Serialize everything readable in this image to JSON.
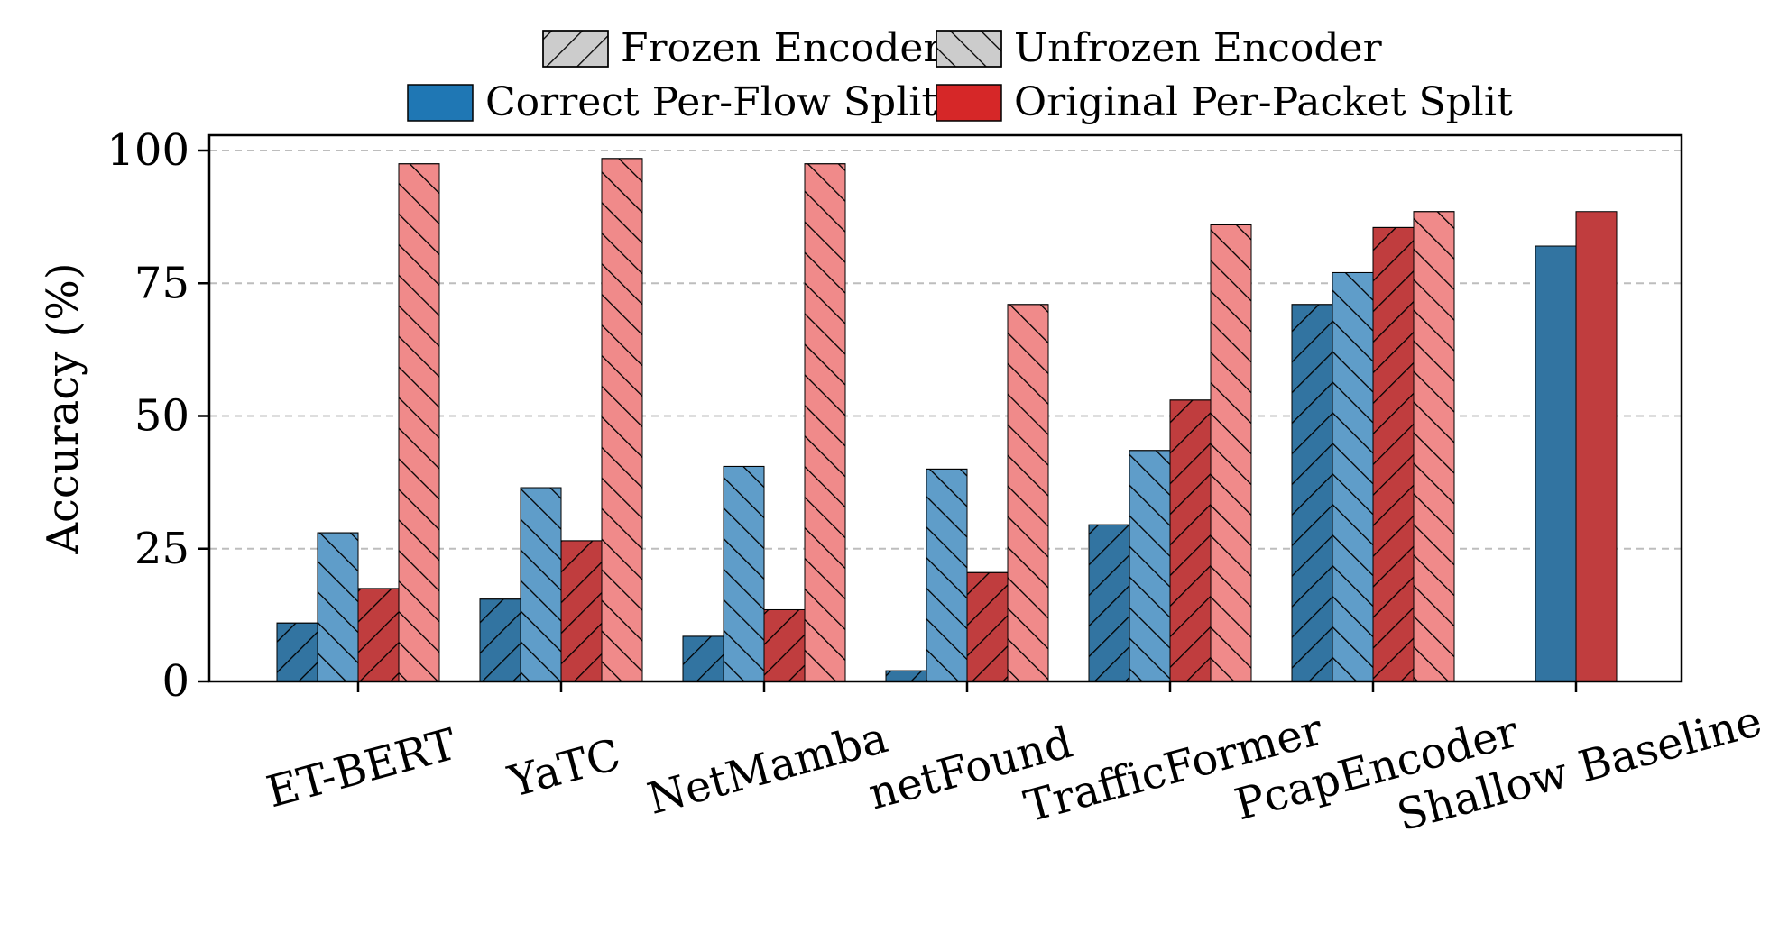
{
  "chart_data": {
    "type": "bar",
    "categories": [
      "ET-BERT",
      "YaTC",
      "NetMamba",
      "netFound",
      "TrafficFormer",
      "PcapEncoder",
      "Shallow Baseline"
    ],
    "series": [
      {
        "name": "Correct Per-Flow Split",
        "encoder": "Frozen Encoder",
        "values": [
          11,
          15.5,
          8.5,
          2,
          29.5,
          71,
          82
        ]
      },
      {
        "name": "Correct Per-Flow Split",
        "encoder": "Unfrozen Encoder",
        "values": [
          28,
          36.5,
          40.5,
          40,
          43.5,
          77,
          null
        ]
      },
      {
        "name": "Original Per-Packet Split",
        "encoder": "Frozen Encoder",
        "values": [
          17.5,
          26.5,
          13.5,
          20.5,
          53,
          85.5,
          88.5
        ]
      },
      {
        "name": "Original Per-Packet Split",
        "encoder": "Unfrozen Encoder",
        "values": [
          97.5,
          98.5,
          97.5,
          71,
          86,
          88.5,
          null
        ]
      }
    ],
    "xlabel": "",
    "ylabel": "Accuracy (%)",
    "ylim": [
      0,
      100
    ],
    "yticks": [
      0,
      25,
      50,
      75,
      100
    ],
    "grid": "horizontal dashed",
    "legend": {
      "placement": "top-center",
      "entries": [
        "Frozen Encoder",
        "Unfrozen Encoder",
        "Correct Per-Flow Split",
        "Original Per-Packet Split"
      ]
    },
    "colors": {
      "flow_frozen": "#3274a1",
      "flow_unfrozen": "#5f9dc9",
      "packet_frozen": "#c03d3e",
      "packet_unfrozen": "#f08a8a",
      "legend_flow": "#1f77b4",
      "legend_packet": "#d62728",
      "legend_hatch": "#cccccc"
    }
  }
}
